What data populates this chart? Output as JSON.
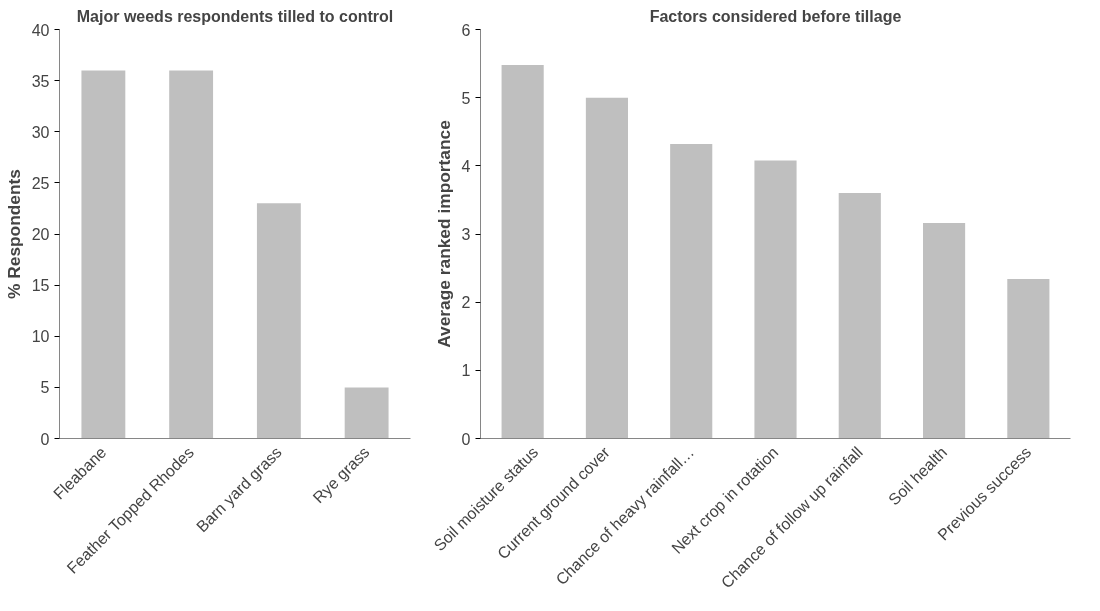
{
  "chart_data": [
    {
      "type": "bar",
      "title": "Major weeds respondents tilled to control",
      "ylabel": "% Respondents",
      "categories": [
        "Fleabane",
        "Feather Topped Rhodes",
        "Barn yard grass",
        "Rye grass"
      ],
      "values": [
        36,
        36,
        23,
        5
      ],
      "color": "#bfbfbf",
      "ylim": [
        0,
        40
      ],
      "yticks": [
        0,
        5,
        10,
        15,
        20,
        25,
        30,
        35,
        40
      ],
      "grid": false
    },
    {
      "type": "bar",
      "title": "Factors considered before tillage",
      "ylabel": "Average ranked importance",
      "categories": [
        "Soil moisture status",
        "Current ground cover",
        "Chance of heavy rainfall…",
        "Next crop in rotation",
        "Chance of follow up rainfall",
        "Soil health",
        "Previous success"
      ],
      "values": [
        5.48,
        5.0,
        4.32,
        4.08,
        3.6,
        3.16,
        2.34
      ],
      "color": "#bfbfbf",
      "ylim": [
        0,
        6
      ],
      "yticks": [
        0,
        1,
        2,
        3,
        4,
        5,
        6
      ],
      "grid": false
    }
  ]
}
